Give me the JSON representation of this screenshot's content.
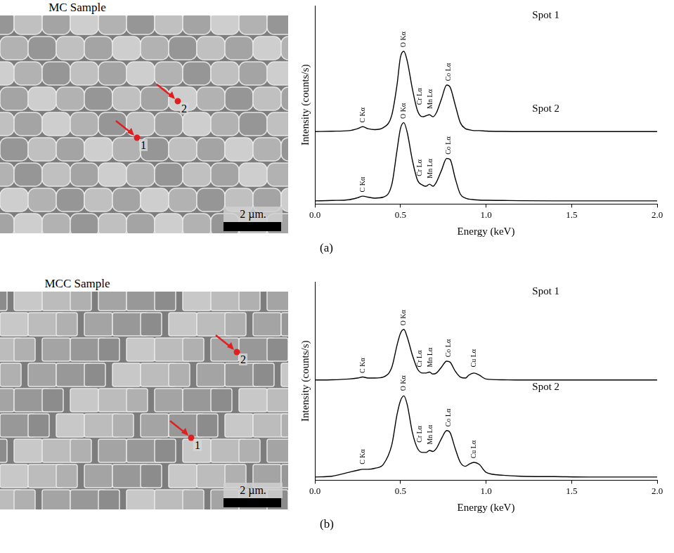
{
  "panel_labels": [
    "(a)",
    "(b)"
  ],
  "images": [
    {
      "title": "MC Sample",
      "scale_bar": "2 µm.",
      "spots": [
        "1",
        "2"
      ]
    },
    {
      "title": "MCC Sample",
      "scale_bar": "2 µm.",
      "spots": [
        "1",
        "2"
      ]
    }
  ],
  "chart_data": [
    {
      "type": "line",
      "x_label": "Energy (keV)",
      "y_label": "Intensity (counts/s)",
      "xlim": [
        0,
        2
      ],
      "xticks": [
        {
          "value": 0,
          "label": "0.0"
        },
        {
          "value": 0.5,
          "label": "0.5"
        },
        {
          "value": 1,
          "label": "1.0"
        },
        {
          "value": 1.5,
          "label": "1.5"
        },
        {
          "value": 2,
          "label": "2.0"
        }
      ],
      "ylim": [
        0,
        100
      ],
      "tick_labels": "x",
      "grid": false,
      "x": [
        0,
        0.1,
        0.2,
        0.25,
        0.28,
        0.31,
        0.35,
        0.4,
        0.45,
        0.48,
        0.5,
        0.52,
        0.54,
        0.57,
        0.6,
        0.63,
        0.65,
        0.67,
        0.69,
        0.71,
        0.74,
        0.77,
        0.79,
        0.82,
        0.85,
        0.88,
        0.9,
        0.93,
        0.96,
        1.0,
        1.1,
        1.2,
        1.4,
        1.6,
        1.8,
        2.0
      ],
      "series": [
        {
          "name": "Spot 1",
          "color": "#000000",
          "name_x": 1.35,
          "name_y": 95,
          "values": [
            36.5,
            36.7,
            37,
            38,
            39,
            38,
            37.5,
            38.5,
            45,
            60,
            74,
            77,
            72,
            58,
            47,
            44,
            44.5,
            45,
            44,
            46,
            53,
            60,
            59,
            50,
            41,
            38,
            37.5,
            37,
            37,
            36.8,
            36.6,
            36.5,
            36.5,
            36.5,
            36.5,
            36.5
          ]
        },
        {
          "name": "Spot 2",
          "color": "#000000",
          "name_x": 1.35,
          "name_y": 48,
          "values": [
            1.6,
            1.8,
            2.2,
            3.2,
            4,
            3.5,
            3,
            3.5,
            10,
            27,
            38,
            41,
            36,
            22,
            12,
            9.5,
            9,
            10,
            9,
            11,
            17,
            23,
            22.5,
            13,
            5,
            3,
            2.5,
            2.2,
            2,
            1.9,
            1.8,
            1.7,
            1.6,
            1.6,
            1.6,
            1.6
          ]
        }
      ],
      "annotations": [
        {
          "text": "C Kα",
          "x": 0.28,
          "y": 41
        },
        {
          "text": "O Kα",
          "x": 0.52,
          "y": 79
        },
        {
          "text": "Cr Lα",
          "x": 0.615,
          "y": 50
        },
        {
          "text": "Mn Lα",
          "x": 0.675,
          "y": 48
        },
        {
          "text": "Co Lα",
          "x": 0.78,
          "y": 62
        },
        {
          "text": "C Kα",
          "x": 0.28,
          "y": 6
        },
        {
          "text": "O Kα",
          "x": 0.52,
          "y": 43
        },
        {
          "text": "Cr Lα",
          "x": 0.615,
          "y": 14
        },
        {
          "text": "Mn Lα",
          "x": 0.675,
          "y": 13
        },
        {
          "text": "Co Lα",
          "x": 0.78,
          "y": 25
        }
      ]
    },
    {
      "type": "line",
      "x_label": "Energy (keV)",
      "y_label": "Intensity (counts/s)",
      "xlim": [
        0,
        2
      ],
      "xticks": [
        {
          "value": 0,
          "label": "0.0"
        },
        {
          "value": 0.5,
          "label": "0.5"
        },
        {
          "value": 1,
          "label": "1.0"
        },
        {
          "value": 1.5,
          "label": "1.5"
        },
        {
          "value": 2,
          "label": "2.0"
        }
      ],
      "ylim": [
        0,
        100
      ],
      "tick_labels": "x",
      "grid": false,
      "x": [
        0,
        0.1,
        0.2,
        0.25,
        0.28,
        0.31,
        0.35,
        0.4,
        0.45,
        0.48,
        0.5,
        0.52,
        0.54,
        0.57,
        0.6,
        0.63,
        0.65,
        0.67,
        0.69,
        0.71,
        0.74,
        0.77,
        0.79,
        0.82,
        0.85,
        0.88,
        0.9,
        0.93,
        0.96,
        1.0,
        1.1,
        1.2,
        1.4,
        1.6,
        1.8,
        2.0
      ],
      "series": [
        {
          "name": "Spot 1",
          "color": "#000000",
          "name_x": 1.35,
          "name_y": 95,
          "values": [
            50.5,
            50.6,
            51,
            51.5,
            52,
            51.5,
            51.5,
            52,
            57,
            68,
            74,
            76,
            72,
            63,
            56,
            54,
            54,
            54.5,
            53.5,
            54,
            57,
            60,
            59.5,
            55,
            52,
            51.5,
            53,
            54,
            53,
            51,
            50.6,
            50.5,
            50.5,
            50.5,
            50.5,
            50.5
          ]
        },
        {
          "name": "Spot 2",
          "color": "#000000",
          "name_x": 1.35,
          "name_y": 47,
          "values": [
            1.6,
            2,
            4,
            5,
            5.5,
            5.5,
            6,
            8,
            18,
            33,
            40,
            42.5,
            38,
            24,
            16,
            14,
            14,
            15,
            14.5,
            16,
            21,
            25,
            24,
            16,
            9,
            7,
            8,
            9,
            8,
            4,
            2.5,
            2,
            1.8,
            1.6,
            1.6,
            1.6
          ]
        }
      ],
      "annotations": [
        {
          "text": "C Kα",
          "x": 0.28,
          "y": 54
        },
        {
          "text": "O Kα",
          "x": 0.52,
          "y": 78
        },
        {
          "text": "Cr Lα",
          "x": 0.615,
          "y": 57
        },
        {
          "text": "Mn Lα",
          "x": 0.675,
          "y": 57
        },
        {
          "text": "Co Lα",
          "x": 0.78,
          "y": 62
        },
        {
          "text": "Cu Lα",
          "x": 0.93,
          "y": 57
        },
        {
          "text": "C Kα",
          "x": 0.28,
          "y": 8
        },
        {
          "text": "O Kα",
          "x": 0.52,
          "y": 45
        },
        {
          "text": "Cr Lα",
          "x": 0.615,
          "y": 19
        },
        {
          "text": "Mn Lα",
          "x": 0.675,
          "y": 18
        },
        {
          "text": "Co Lα",
          "x": 0.78,
          "y": 27
        },
        {
          "text": "Cu Lα",
          "x": 0.93,
          "y": 11
        }
      ]
    }
  ]
}
